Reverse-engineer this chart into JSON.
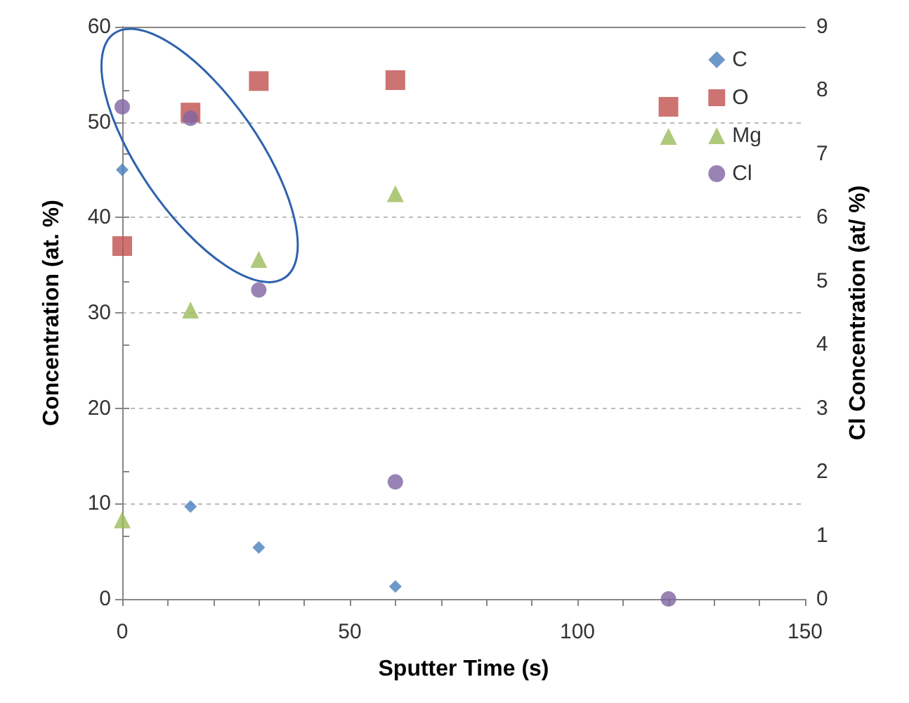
{
  "chart_data": {
    "type": "scatter",
    "xlabel": "Sputter Time (s)",
    "ylabel": "Concentration (at. %)",
    "y2label": "Cl Concentration (at/ %)",
    "xlim": [
      0,
      150
    ],
    "xticks": [
      0,
      {
        "value": 10,
        "label": null
      },
      {
        "value": 20,
        "label": null
      },
      {
        "value": 30,
        "label": null
      },
      {
        "value": 40,
        "label": null
      },
      50,
      {
        "value": 60,
        "label": null
      },
      {
        "value": 70,
        "label": null
      },
      {
        "value": 80,
        "label": null
      },
      {
        "value": 90,
        "label": null
      },
      100,
      {
        "value": 110,
        "label": null
      },
      {
        "value": 120,
        "label": null
      },
      {
        "value": 130,
        "label": null
      },
      {
        "value": 140,
        "label": null
      },
      150
    ],
    "ylim": [
      0,
      60
    ],
    "yticks": [
      0,
      10,
      20,
      30,
      40,
      50,
      60
    ],
    "y2lim": [
      0,
      9
    ],
    "y2ticks": [
      0,
      1,
      2,
      3,
      4,
      5,
      6,
      7,
      8,
      9
    ],
    "grid": "y",
    "legend": "top right",
    "series": [
      {
        "name": "C",
        "color": "#4a7ebb",
        "marker": "diamond",
        "x": [
          0,
          15,
          30,
          60
        ],
        "values": [
          45,
          9.7,
          5.4,
          1.3
        ]
      },
      {
        "name": "O",
        "color": "#c0504d",
        "marker": "square",
        "x": [
          0,
          15,
          30,
          60,
          120
        ],
        "values": [
          37,
          51,
          54.3,
          54.4,
          51.6
        ]
      },
      {
        "name": "Mg",
        "color": "#9bbb59",
        "marker": "triangle",
        "x": [
          0,
          15,
          30,
          60,
          120
        ],
        "values": [
          8.3,
          30.3,
          35.6,
          42.5,
          48.5
        ]
      },
      {
        "name": "Cl",
        "color": "#8064a2",
        "marker": "circle",
        "axis": "y2",
        "x": [
          0,
          15,
          30,
          60,
          120
        ],
        "values": [
          7.74,
          7.56,
          4.86,
          1.84,
          0
        ]
      }
    ]
  }
}
